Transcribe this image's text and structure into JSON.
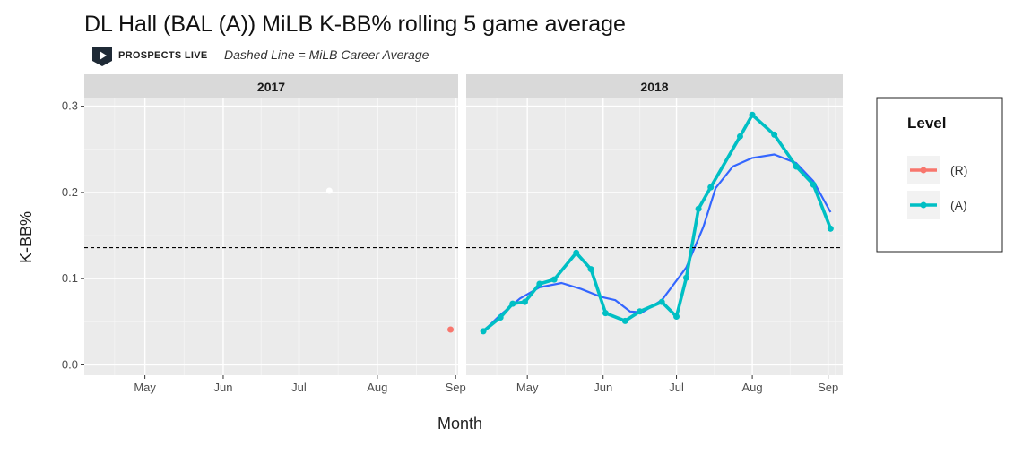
{
  "chart_data": {
    "type": "line",
    "title": "DL Hall (BAL (A)) MiLB K-BB% rolling 5 game average",
    "subtitle": "Dashed Line = MiLB Career Average",
    "brand": "PROSPECTS LIVE",
    "xlabel": "Month",
    "ylabel": "K-BB%",
    "ylim": [
      -0.012,
      0.31
    ],
    "yticks": [
      0.0,
      0.1,
      0.2,
      0.3
    ],
    "ytick_labels": [
      "0.0",
      "0.1",
      "0.2",
      "0.3"
    ],
    "career_average": 0.136,
    "grid": true,
    "legend": {
      "title": "Level",
      "placement": "right",
      "entries": [
        {
          "label": "(R)",
          "color": "#F8766D"
        },
        {
          "label": "(A)",
          "color": "#00BFC4"
        }
      ]
    },
    "smooth_color": "#3366FF",
    "panels": [
      {
        "label": "2017",
        "xlim": [
          97,
          245
        ],
        "xticks": [
          121,
          152,
          182,
          213,
          244
        ],
        "xtick_labels": [
          "May",
          "Jun",
          "Jul",
          "Aug",
          "Sep"
        ],
        "series": [
          {
            "level": "(A)",
            "color": "#00BFC4",
            "points": [
              [
                194,
                0.202
              ]
            ]
          },
          {
            "level": "(R)",
            "color": "#F8766D",
            "points": [
              [
                242,
                0.041
              ]
            ]
          }
        ]
      },
      {
        "label": "2018",
        "xlim": [
          96,
          250
        ],
        "xticks": [
          121,
          152,
          182,
          213,
          244
        ],
        "xtick_labels": [
          "May",
          "Jun",
          "Jul",
          "Aug",
          "Sep"
        ],
        "series": [
          {
            "level": "(A)",
            "color": "#00BFC4",
            "points": [
              [
                103,
                0.039
              ],
              [
                110,
                0.055
              ],
              [
                115,
                0.071
              ],
              [
                120,
                0.073
              ],
              [
                126,
                0.094
              ],
              [
                132,
                0.099
              ],
              [
                141,
                0.13
              ],
              [
                147,
                0.111
              ],
              [
                153,
                0.06
              ],
              [
                161,
                0.051
              ],
              [
                167,
                0.062
              ],
              [
                176,
                0.073
              ],
              [
                182,
                0.056
              ],
              [
                186,
                0.101
              ],
              [
                191,
                0.181
              ],
              [
                196,
                0.206
              ],
              [
                208,
                0.265
              ],
              [
                213,
                0.29
              ],
              [
                222,
                0.267
              ],
              [
                231,
                0.23
              ],
              [
                238,
                0.209
              ],
              [
                245,
                0.158
              ]
            ]
          }
        ],
        "smooth": [
          [
            103,
            0.039
          ],
          [
            110,
            0.058
          ],
          [
            118,
            0.077
          ],
          [
            126,
            0.09
          ],
          [
            135,
            0.095
          ],
          [
            143,
            0.088
          ],
          [
            151,
            0.079
          ],
          [
            157,
            0.075
          ],
          [
            163,
            0.062
          ],
          [
            168,
            0.061
          ],
          [
            176,
            0.075
          ],
          [
            186,
            0.113
          ],
          [
            193,
            0.16
          ],
          [
            198,
            0.205
          ],
          [
            205,
            0.23
          ],
          [
            213,
            0.24
          ],
          [
            222,
            0.244
          ],
          [
            231,
            0.234
          ],
          [
            238,
            0.213
          ],
          [
            245,
            0.177
          ]
        ]
      }
    ]
  }
}
